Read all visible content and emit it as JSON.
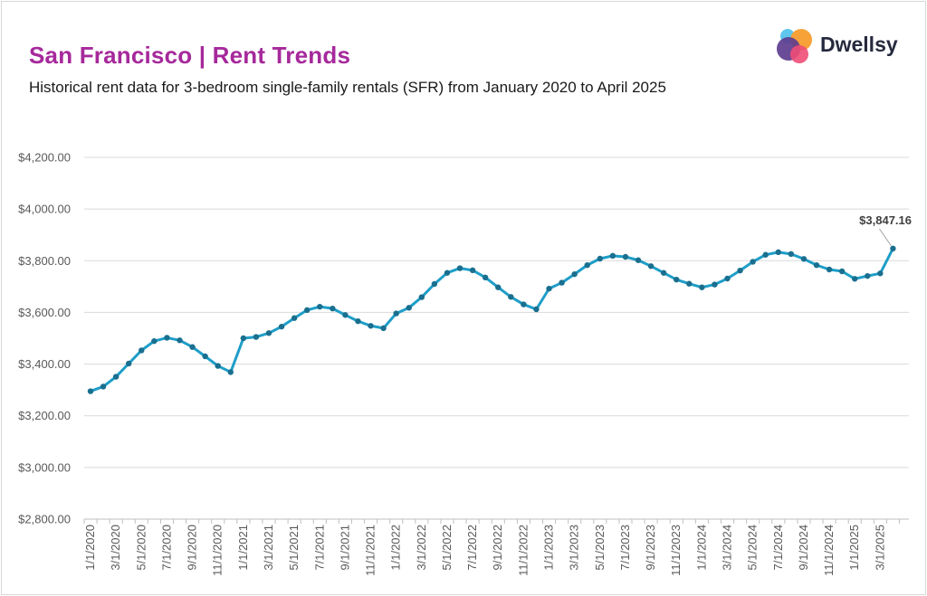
{
  "page": {
    "title": "San Francisco | Rent Trends",
    "subtitle": "Historical rent data for 3-bedroom single-family rentals (SFR) from January 2020 to April 2025",
    "logo_text": "Dwellsy",
    "accent_color": "#a6299b",
    "line_color": "#1e9ec8",
    "marker_color": "#1a6f8f"
  },
  "chart_data": {
    "type": "line",
    "ylim": [
      2800,
      4200
    ],
    "yticks": [
      4200,
      4000,
      3800,
      3600,
      3400,
      3200,
      3000,
      2800
    ],
    "ytick_labels": [
      "$4,200.00",
      "$4,000.00",
      "$3,800.00",
      "$3,600.00",
      "$3,400.00",
      "$3,200.00",
      "$3,000.00",
      "$2,800.00"
    ],
    "grid": true,
    "x_tick_labels": [
      "1/1/2020",
      "3/1/2020",
      "5/1/2020",
      "7/1/2020",
      "9/1/2020",
      "11/1/2020",
      "1/1/2021",
      "3/1/2021",
      "5/1/2021",
      "7/1/2021",
      "9/1/2021",
      "11/1/2021",
      "1/1/2022",
      "3/1/2022",
      "5/1/2022",
      "7/1/2022",
      "9/1/2022",
      "11/1/2022",
      "1/1/2023",
      "3/1/2023",
      "5/1/2023",
      "7/1/2023",
      "9/1/2023",
      "11/1/2023",
      "1/1/2024",
      "3/1/2024",
      "5/1/2024",
      "7/1/2024",
      "9/1/2024",
      "11/1/2024",
      "1/1/2025",
      "3/1/2025"
    ],
    "x": [
      "2020-01",
      "2020-02",
      "2020-03",
      "2020-04",
      "2020-05",
      "2020-06",
      "2020-07",
      "2020-08",
      "2020-09",
      "2020-10",
      "2020-11",
      "2020-12",
      "2021-01",
      "2021-02",
      "2021-03",
      "2021-04",
      "2021-05",
      "2021-06",
      "2021-07",
      "2021-08",
      "2021-09",
      "2021-10",
      "2021-11",
      "2021-12",
      "2022-01",
      "2022-02",
      "2022-03",
      "2022-04",
      "2022-05",
      "2022-06",
      "2022-07",
      "2022-08",
      "2022-09",
      "2022-10",
      "2022-11",
      "2022-12",
      "2023-01",
      "2023-02",
      "2023-03",
      "2023-04",
      "2023-05",
      "2023-06",
      "2023-07",
      "2023-08",
      "2023-09",
      "2023-10",
      "2023-11",
      "2023-12",
      "2024-01",
      "2024-02",
      "2024-03",
      "2024-04",
      "2024-05",
      "2024-06",
      "2024-07",
      "2024-08",
      "2024-09",
      "2024-10",
      "2024-11",
      "2024-12",
      "2025-01",
      "2025-02",
      "2025-03",
      "2025-04"
    ],
    "series": [
      {
        "values": [
          3295,
          3313,
          3351,
          3402,
          3453,
          3489,
          3502,
          3492,
          3466,
          3430,
          3393,
          3369,
          3500,
          3505,
          3520,
          3545,
          3578,
          3609,
          3622,
          3615,
          3590,
          3566,
          3548,
          3539,
          3596,
          3618,
          3659,
          3710,
          3753,
          3771,
          3763,
          3735,
          3697,
          3660,
          3631,
          3612,
          3692,
          3715,
          3748,
          3783,
          3808,
          3819,
          3815,
          3802,
          3779,
          3753,
          3727,
          3711,
          3697,
          3708,
          3731,
          3762,
          3796,
          3823,
          3833,
          3826,
          3807,
          3783,
          3766,
          3759,
          3730,
          3741,
          3751,
          3847.16
        ]
      }
    ],
    "annotation": {
      "label": "$3,847.16",
      "point_index": 63
    }
  }
}
